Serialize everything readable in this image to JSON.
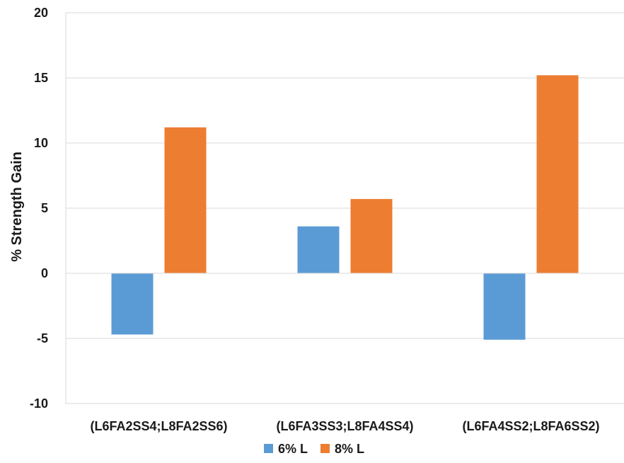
{
  "chart_data": {
    "type": "bar",
    "title": "",
    "xlabel": "",
    "ylabel": "% Strength Gain",
    "categories": [
      "(L6FA2SS4;L8FA2SS6)",
      "(L6FA3SS3;L8FA4SS4)",
      "(L6FA4SS2;L8FA6SS2)"
    ],
    "series": [
      {
        "name": "6% L",
        "color": "#5b9bd5",
        "values": [
          -4.7,
          3.6,
          -5.1
        ]
      },
      {
        "name": "8% L",
        "color": "#ed7d31",
        "values": [
          11.2,
          5.7,
          15.2
        ]
      }
    ],
    "ylim": [
      -10,
      20
    ],
    "yticks": [
      -10,
      -5,
      0,
      5,
      10,
      15,
      20
    ],
    "grid": true,
    "legend": "bottom"
  }
}
